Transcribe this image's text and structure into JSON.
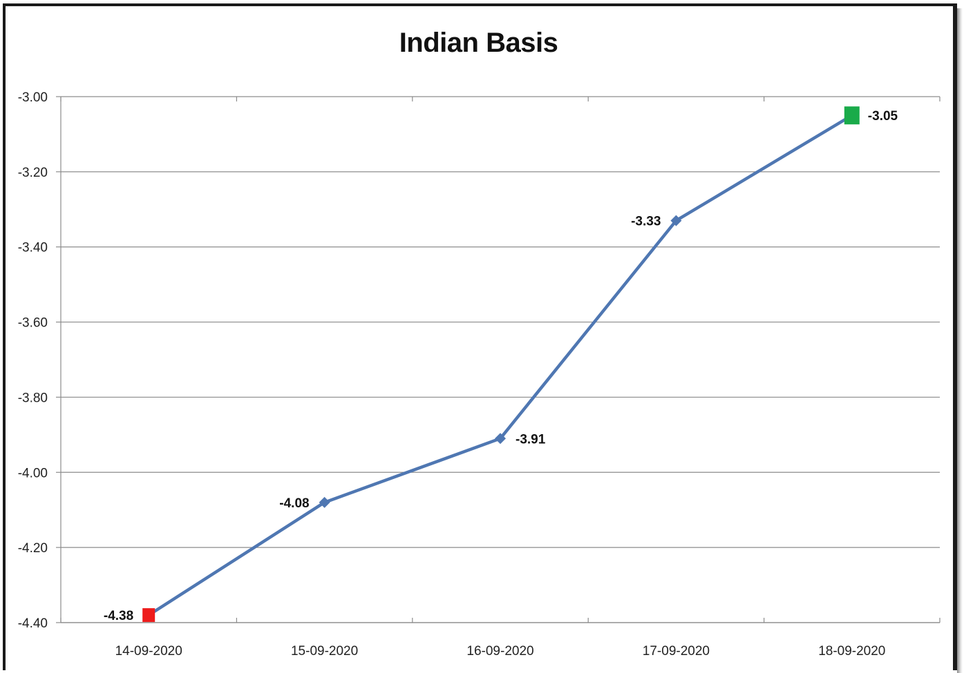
{
  "chart_data": {
    "type": "line",
    "title": "Indian Basis",
    "xlabel": "",
    "ylabel": "",
    "categories": [
      "14-09-2020",
      "15-09-2020",
      "16-09-2020",
      "17-09-2020",
      "18-09-2020"
    ],
    "series": [
      {
        "values": [
          -4.38,
          -4.08,
          -3.91,
          -3.33,
          -3.05
        ],
        "data_labels": [
          "-4.38",
          "-4.08",
          "-3.91",
          "-3.33",
          "-3.05"
        ],
        "color": "#4f77b2"
      }
    ],
    "y_ticks": [
      "-3.00",
      "-3.20",
      "-3.40",
      "-3.60",
      "-3.80",
      "-4.00",
      "-4.20",
      "-4.40"
    ],
    "ylim": [
      -4.4,
      -3.0
    ],
    "grid": true,
    "legend": "none",
    "marker_colors": {
      "min": "#ee1c1c",
      "max": "#1aab4a",
      "default": "#4f77b2"
    }
  }
}
